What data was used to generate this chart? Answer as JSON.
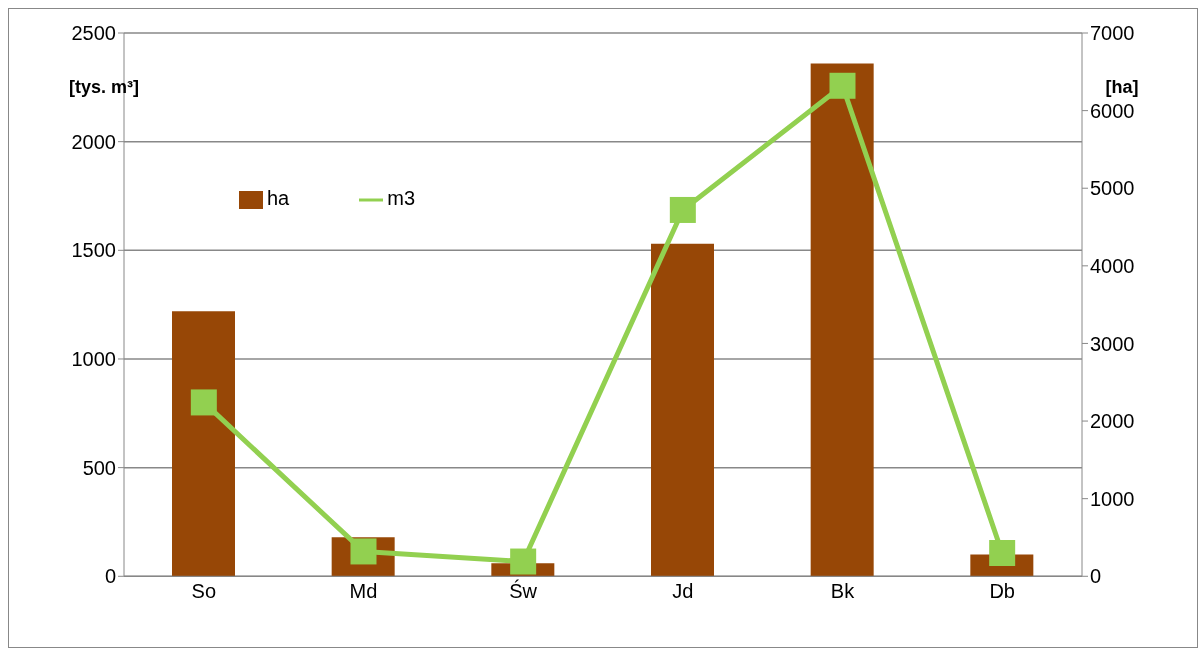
{
  "chart_data": {
    "type": "bar",
    "categories": [
      "So",
      "Md",
      "Św",
      "Jd",
      "Bk",
      "Db"
    ],
    "ylabel": "[tys. m³]",
    "y2label": "[ha]",
    "series": [
      {
        "name": "ha",
        "color": "#974706",
        "values": [
          1220,
          180,
          60,
          1530,
          2360,
          100
        ]
      },
      {
        "name": "m3",
        "type": "line",
        "axis": "y2",
        "color": "#92d050",
        "marker": "square",
        "values": [
          2240,
          320,
          190,
          4720,
          6320,
          300
        ]
      }
    ],
    "ylim": [
      0,
      2500
    ],
    "yticks": [
      0,
      500,
      1000,
      1500,
      2000,
      2500
    ],
    "y2lim": [
      0,
      7000
    ],
    "y2ticks": [
      0,
      1000,
      2000,
      3000,
      4000,
      5000,
      6000,
      7000
    ],
    "grid": "y",
    "legend": "top left"
  }
}
